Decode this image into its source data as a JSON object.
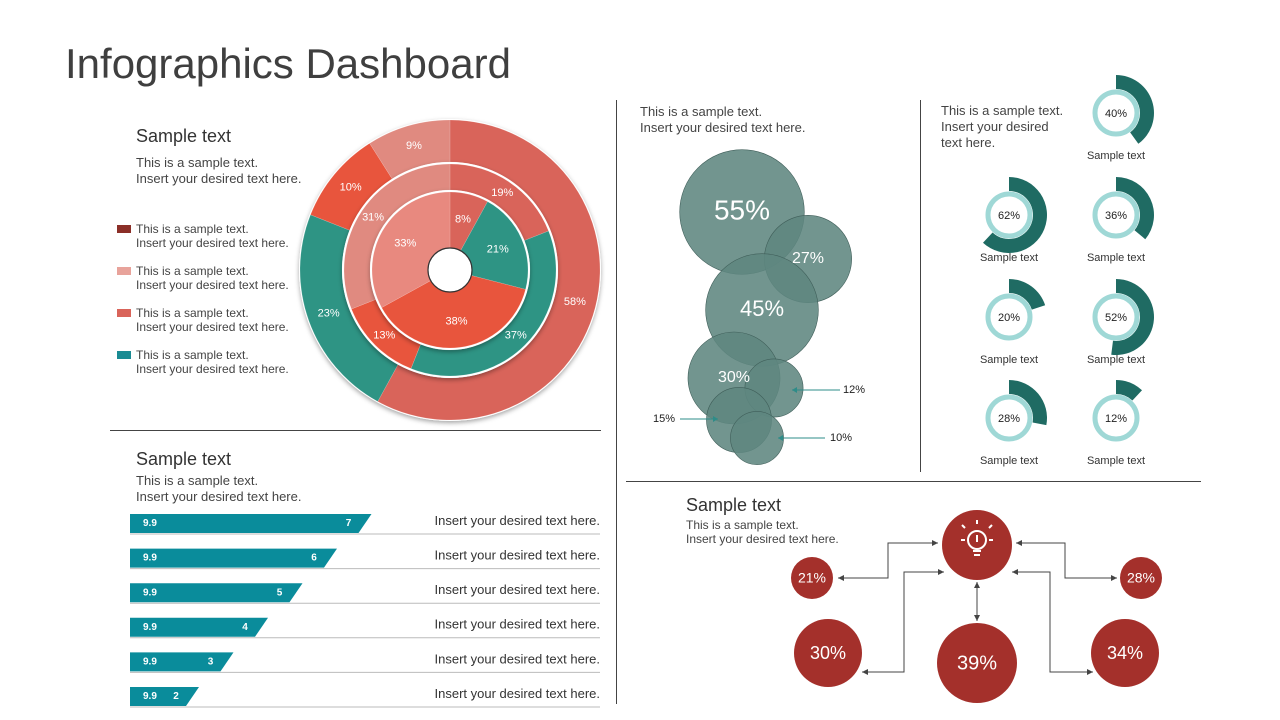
{
  "page": {
    "title": "Infographics Dashboard"
  },
  "colors": {
    "dark_red": "#8b2f28",
    "light_salmon": "#e8a39b",
    "salmon": "#d9645a",
    "orange_red": "#e8553d",
    "teal": "#2e9484",
    "bubble": "#5e8680",
    "bar": "#0a8c9b",
    "gauge_dark": "#1f6b63",
    "gauge_light": "#9fd8d6",
    "flow_red": "#a4302b"
  },
  "donut_panel": {
    "heading": "Sample text",
    "desc": [
      "This is a sample text.",
      "Insert your desired text here."
    ],
    "legend": [
      {
        "color": "#8b2f28",
        "line1": "This is a sample text.",
        "line2": "Insert your desired text here."
      },
      {
        "color": "#e8a39b",
        "line1": "This is a sample text.",
        "line2": "Insert your desired text here."
      },
      {
        "color": "#d9645a",
        "line1": "This is a sample text.",
        "line2": "Insert your desired text here."
      },
      {
        "color": "#1a8b93",
        "line1": "This is a sample text.",
        "line2": "Insert your desired text here."
      }
    ]
  },
  "bubble_panel": {
    "desc": [
      "This is a sample text.",
      "Insert your desired text here."
    ]
  },
  "gauge_panel": {
    "desc": [
      "This is a sample text.",
      "Insert your desired",
      "text here."
    ]
  },
  "bar_panel": {
    "heading": "Sample text",
    "desc": [
      "This is a sample text.",
      "Insert your desired text here."
    ]
  },
  "flow_panel": {
    "heading": "Sample text",
    "desc": [
      "This is a sample text.",
      "Insert your desired text here."
    ],
    "center_icon": "lightbulb-icon"
  },
  "chart_data": [
    {
      "type": "pie",
      "name": "nested-donut",
      "rings": [
        {
          "slices": [
            {
              "label": "58%",
              "value": 58,
              "color": "#d9645a"
            },
            {
              "label": "23%",
              "value": 23,
              "color": "#2e9484"
            },
            {
              "label": "10%",
              "value": 10,
              "color": "#e8553d"
            },
            {
              "label": "9%",
              "value": 9,
              "color": "#e08a80"
            }
          ]
        },
        {
          "slices": [
            {
              "label": "19%",
              "value": 19,
              "color": "#d9645a"
            },
            {
              "label": "37%",
              "value": 37,
              "color": "#2e9484"
            },
            {
              "label": "13%",
              "value": 13,
              "color": "#e8553d"
            },
            {
              "label": "31%",
              "value": 31,
              "color": "#e08a80"
            }
          ]
        },
        {
          "slices": [
            {
              "label": "8%",
              "value": 8,
              "color": "#d9645a"
            },
            {
              "label": "21%",
              "value": 21,
              "color": "#2e9484"
            },
            {
              "label": "38%",
              "value": 38,
              "color": "#e8553d"
            },
            {
              "label": "33%",
              "value": 33,
              "color": "#e8897f"
            }
          ]
        }
      ]
    },
    {
      "type": "scatter",
      "name": "bubbles",
      "values": [
        55,
        27,
        45,
        30,
        12,
        15,
        10
      ],
      "labels": [
        "55%",
        "27%",
        "45%",
        "30%",
        "12%",
        "15%",
        "10%"
      ]
    },
    {
      "type": "pie",
      "name": "gauges",
      "items": [
        {
          "value": 40,
          "label": "40%",
          "caption": "Sample text"
        },
        {
          "value": 62,
          "label": "62%",
          "caption": "Sample text"
        },
        {
          "value": 36,
          "label": "36%",
          "caption": "Sample text"
        },
        {
          "value": 20,
          "label": "20%",
          "caption": "Sample text"
        },
        {
          "value": 52,
          "label": "52%",
          "caption": "Sample text"
        },
        {
          "value": 28,
          "label": "28%",
          "caption": "Sample text"
        },
        {
          "value": 12,
          "label": "12%",
          "caption": "Sample text"
        }
      ]
    },
    {
      "type": "bar",
      "name": "horizontal-bars",
      "rows": [
        {
          "start_label": "9.9",
          "value": 7,
          "label": "7",
          "text": "Insert your desired text here."
        },
        {
          "start_label": "9.9",
          "value": 6,
          "label": "6",
          "text": "Insert your desired text here."
        },
        {
          "start_label": "9.9",
          "value": 5,
          "label": "5",
          "text": "Insert your desired text here."
        },
        {
          "start_label": "9.9",
          "value": 4,
          "label": "4",
          "text": "Insert your desired text here."
        },
        {
          "start_label": "9.9",
          "value": 3,
          "label": "3",
          "text": "Insert your desired text here."
        },
        {
          "start_label": "9.9",
          "value": 2,
          "label": "2",
          "text": "Insert your desired text here."
        }
      ]
    },
    {
      "type": "scatter",
      "name": "flow-circles",
      "items": [
        {
          "label": "21%",
          "value": 21
        },
        {
          "label": "28%",
          "value": 28
        },
        {
          "label": "30%",
          "value": 30
        },
        {
          "label": "39%",
          "value": 39
        },
        {
          "label": "34%",
          "value": 34
        }
      ]
    }
  ]
}
